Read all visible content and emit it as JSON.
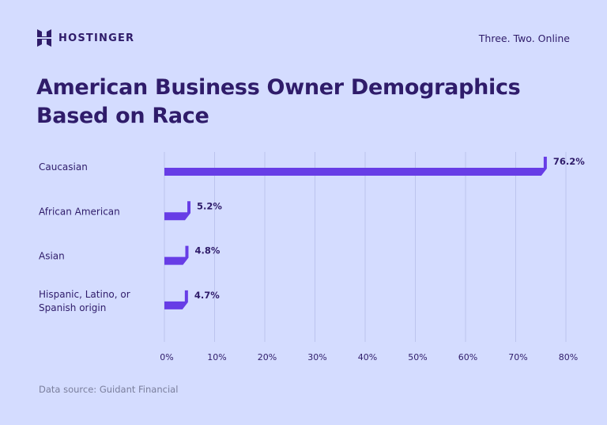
{
  "brand": {
    "name": "HOSTINGER",
    "tagline": "Three. Two. Online",
    "logo_icon": "hostinger-h-logo-icon"
  },
  "title": "American Business Owner Demographics Based on Race",
  "source": "Data source: Guidant Financial",
  "colors": {
    "background": "#d4dcff",
    "bar": "#673de6",
    "text": "#2f1c6a",
    "grid": "#bcc4ee",
    "muted": "#7a7e9c"
  },
  "chart_data": {
    "type": "bar",
    "orientation": "horizontal",
    "categories": [
      [
        "Caucasian"
      ],
      [
        "African American"
      ],
      [
        "Asian"
      ],
      [
        "Hispanic, Latino, or",
        "Spanish origin"
      ]
    ],
    "values": [
      76.2,
      5.2,
      4.8,
      4.7
    ],
    "value_labels": [
      "76.2%",
      "5.2%",
      "4.8%",
      "4.7%"
    ],
    "xticks": [
      "0%",
      "10%",
      "20%",
      "30%",
      "40%",
      "50%",
      "60%",
      "70%",
      "80%"
    ],
    "xlim": [
      0,
      80
    ],
    "grid": "vertical",
    "legend": "none"
  }
}
